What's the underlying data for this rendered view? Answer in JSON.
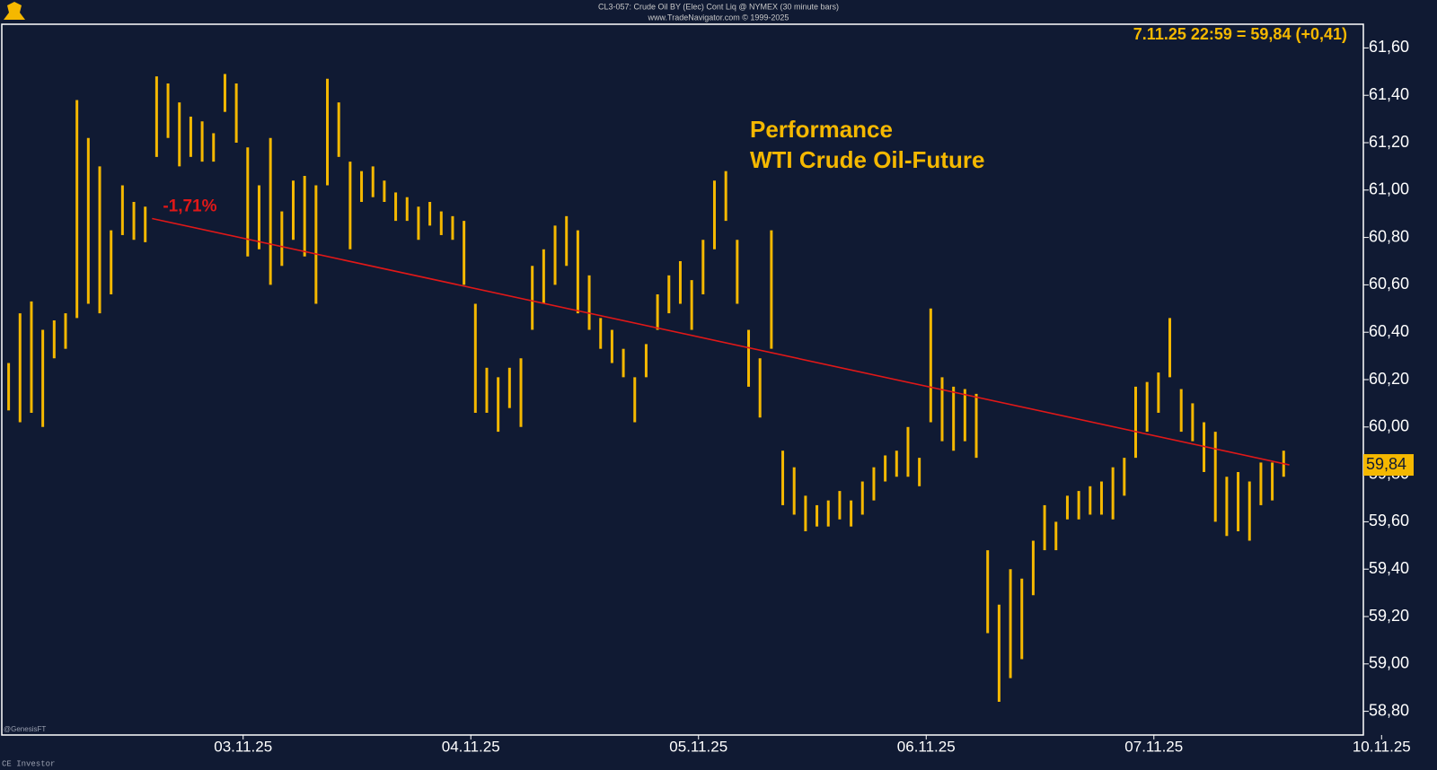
{
  "chart_data": {
    "type": "ohlc",
    "header": "CL3-057: Crude Oil BY (Elec) Cont Liq @ NYMEX (30 minute bars)",
    "subheader": "www.TradeNavigator.com © 1999-2025",
    "last_quote": "7.11.25 22:59 = 59,84 (+0,41)",
    "title_lines": [
      "Performance",
      "WTI Crude Oil-Future"
    ],
    "footer_left": [
      "@GenesisFT",
      "CE Investor"
    ],
    "color": "#f5b800",
    "x": [
      -1.03,
      -0.98,
      -0.93,
      -0.88,
      -0.83,
      -0.78,
      -0.73,
      -0.68,
      -0.63,
      -0.58,
      -0.53,
      -0.48,
      -0.43,
      -0.38,
      -0.33,
      -0.28,
      -0.23,
      -0.18,
      -0.13,
      -0.08,
      -0.03,
      0.02,
      0.07,
      0.12,
      0.17,
      0.22,
      0.27,
      0.32,
      0.37,
      0.42,
      0.47,
      0.52,
      0.57,
      0.62,
      0.67,
      0.72,
      0.77,
      0.82,
      0.87,
      0.92,
      0.97,
      1.02,
      1.07,
      1.12,
      1.17,
      1.22,
      1.27,
      1.32,
      1.37,
      1.42,
      1.47,
      1.52,
      1.57,
      1.62,
      1.67,
      1.72,
      1.77,
      1.82,
      1.87,
      1.92,
      1.97,
      2.02,
      2.07,
      2.12,
      2.17,
      2.22,
      2.27,
      2.32,
      2.37,
      2.42,
      2.47,
      2.52,
      2.57,
      2.62,
      2.67,
      2.72,
      2.77,
      2.82,
      2.87,
      2.92,
      2.97,
      3.02,
      3.07,
      3.12,
      3.17,
      3.22,
      3.27,
      3.32,
      3.37,
      3.42,
      3.47,
      3.52,
      3.57,
      3.62,
      3.67,
      3.72,
      3.77,
      3.82,
      3.87,
      3.92,
      3.97,
      4.02,
      4.07,
      4.12,
      4.17,
      4.22,
      4.27,
      4.32,
      4.37,
      4.42,
      4.47,
      4.52,
      4.57
    ],
    "high": [
      60.27,
      60.48,
      60.53,
      60.41,
      60.45,
      60.48,
      61.38,
      61.22,
      61.1,
      60.83,
      61.02,
      60.95,
      60.93,
      61.48,
      61.45,
      61.37,
      61.31,
      61.29,
      61.24,
      61.49,
      61.45,
      61.18,
      61.02,
      61.22,
      60.91,
      61.04,
      61.06,
      61.02,
      61.47,
      61.37,
      61.12,
      61.08,
      61.1,
      61.04,
      60.99,
      60.97,
      60.93,
      60.95,
      60.91,
      60.89,
      60.87,
      60.52,
      60.25,
      60.21,
      60.25,
      60.29,
      60.68,
      60.75,
      60.85,
      60.89,
      60.83,
      60.64,
      60.46,
      60.41,
      60.33,
      60.21,
      60.35,
      60.56,
      60.64,
      60.7,
      60.62,
      60.79,
      61.04,
      61.08,
      60.79,
      60.41,
      60.29,
      60.83,
      59.9,
      59.83,
      59.71,
      59.67,
      59.69,
      59.73,
      59.69,
      59.77,
      59.83,
      59.88,
      59.9,
      60.0,
      59.87,
      60.5,
      60.21,
      60.17,
      60.16,
      60.14,
      59.48,
      59.25,
      59.4,
      59.36,
      59.52,
      59.67,
      59.6,
      59.71,
      59.73,
      59.75,
      59.77,
      59.83,
      59.87,
      60.17,
      60.19,
      60.23,
      60.46,
      60.16,
      60.1,
      60.02,
      59.98,
      59.79,
      59.81,
      59.77,
      59.85,
      59.85,
      59.9
    ],
    "low": [
      60.07,
      60.02,
      60.06,
      60.0,
      60.29,
      60.33,
      60.46,
      60.52,
      60.48,
      60.56,
      60.81,
      60.79,
      60.78,
      61.14,
      61.22,
      61.1,
      61.14,
      61.12,
      61.12,
      61.33,
      61.2,
      60.72,
      60.75,
      60.6,
      60.68,
      60.79,
      60.72,
      60.52,
      61.02,
      61.14,
      60.75,
      60.95,
      60.97,
      60.95,
      60.87,
      60.87,
      60.79,
      60.85,
      60.81,
      60.79,
      60.6,
      60.06,
      60.06,
      59.98,
      60.08,
      60.0,
      60.41,
      60.52,
      60.6,
      60.68,
      60.48,
      60.41,
      60.33,
      60.27,
      60.21,
      60.02,
      60.21,
      60.41,
      60.48,
      60.52,
      60.41,
      60.56,
      60.75,
      60.87,
      60.52,
      60.17,
      60.04,
      60.33,
      59.67,
      59.63,
      59.56,
      59.58,
      59.58,
      59.61,
      59.58,
      59.63,
      59.69,
      59.77,
      59.79,
      59.79,
      59.75,
      60.02,
      59.94,
      59.9,
      59.94,
      59.87,
      59.13,
      58.84,
      58.94,
      59.02,
      59.29,
      59.48,
      59.48,
      59.61,
      59.61,
      59.63,
      59.63,
      59.61,
      59.71,
      59.87,
      59.98,
      60.06,
      60.21,
      59.98,
      59.94,
      59.81,
      59.6,
      59.54,
      59.56,
      59.52,
      59.67,
      59.69,
      59.79
    ],
    "trendline": {
      "x": [
        -0.4,
        4.595
      ],
      "y": [
        60.88,
        59.84
      ],
      "label": "-1,71%",
      "color": "#e01818"
    },
    "last_price": {
      "value": 59.84,
      "label": "59,84"
    },
    "xlim": [
      -1.06,
      4.92
    ],
    "xticks": [
      {
        "value": 0,
        "label": "03.11.25"
      },
      {
        "value": 1,
        "label": "04.11.25"
      },
      {
        "value": 2,
        "label": "05.11.25"
      },
      {
        "value": 3,
        "label": "06.11.25"
      },
      {
        "value": 4,
        "label": "07.11.25"
      },
      {
        "value": 5,
        "label": "10.11.25"
      }
    ],
    "ylim": [
      58.7,
      61.7
    ],
    "yticks": [
      {
        "value": 58.8,
        "label": "58,80"
      },
      {
        "value": 59.0,
        "label": "59,00"
      },
      {
        "value": 59.2,
        "label": "59,20"
      },
      {
        "value": 59.4,
        "label": "59,40"
      },
      {
        "value": 59.6,
        "label": "59,60"
      },
      {
        "value": 59.8,
        "label": "59,80"
      },
      {
        "value": 60.0,
        "label": "60,00"
      },
      {
        "value": 60.2,
        "label": "60,20"
      },
      {
        "value": 60.4,
        "label": "60,40"
      },
      {
        "value": 60.6,
        "label": "60,60"
      },
      {
        "value": 60.8,
        "label": "60,80"
      },
      {
        "value": 61.0,
        "label": "61,00"
      },
      {
        "value": 61.2,
        "label": "61,20"
      },
      {
        "value": 61.4,
        "label": "61,40"
      },
      {
        "value": 61.6,
        "label": "61,60"
      }
    ]
  }
}
